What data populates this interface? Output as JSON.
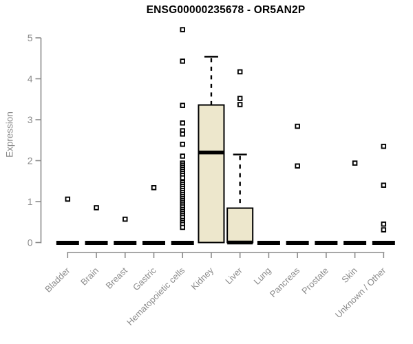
{
  "chart_data": {
    "type": "box",
    "title": "ENSG00000235678 - OR5AN2P",
    "ylabel": "Expression",
    "xlabel": "",
    "ylim": [
      0,
      5
    ],
    "yticks": [
      0,
      1,
      2,
      3,
      4,
      5
    ],
    "grid": false,
    "legend": "none",
    "categories": [
      "Bladder",
      "Brain",
      "Breast",
      "Gastric",
      "Hematopoietic cells",
      "Kidney",
      "Liver",
      "Lung",
      "Pancreas",
      "Prostate",
      "Skin",
      "Unknown / Other"
    ],
    "boxes": [
      {
        "category": "Bladder",
        "q1": 0,
        "median": 0,
        "q3": 0,
        "whisker_low": 0,
        "whisker_high": 0,
        "outliers": [
          1.06
        ]
      },
      {
        "category": "Brain",
        "q1": 0,
        "median": 0,
        "q3": 0,
        "whisker_low": 0,
        "whisker_high": 0,
        "outliers": [
          0.85
        ]
      },
      {
        "category": "Breast",
        "q1": 0,
        "median": 0,
        "q3": 0,
        "whisker_low": 0,
        "whisker_high": 0,
        "outliers": [
          0.57
        ]
      },
      {
        "category": "Gastric",
        "q1": 0,
        "median": 0,
        "q3": 0,
        "whisker_low": 0,
        "whisker_high": 0,
        "outliers": [
          1.34
        ]
      },
      {
        "category": "Hematopoietic cells",
        "q1": 0,
        "median": 0,
        "q3": 0,
        "whisker_low": 0,
        "whisker_high": 0,
        "outliers": [
          5.2,
          4.43,
          3.35,
          2.92,
          2.73,
          2.65,
          2.4,
          2.11,
          1.94,
          1.89,
          1.84,
          1.79,
          1.74,
          1.69,
          1.64,
          1.58,
          1.47,
          1.42,
          1.37,
          1.32,
          1.27,
          1.22,
          1.17,
          1.12,
          1.07,
          1.02,
          0.97,
          0.92,
          0.87,
          0.81,
          0.76,
          0.71,
          0.66,
          0.61,
          0.54,
          0.49,
          0.44,
          0.37
        ]
      },
      {
        "category": "Kidney",
        "q1": 0,
        "median": 2.2,
        "q3": 3.36,
        "whisker_low": 0,
        "whisker_high": 4.54,
        "outliers": []
      },
      {
        "category": "Liver",
        "q1": 0,
        "median": 0,
        "q3": 0.84,
        "whisker_low": 0,
        "whisker_high": 2.15,
        "outliers": [
          4.17,
          3.52,
          3.37
        ]
      },
      {
        "category": "Lung",
        "q1": 0,
        "median": 0,
        "q3": 0,
        "whisker_low": 0,
        "whisker_high": 0,
        "outliers": []
      },
      {
        "category": "Pancreas",
        "q1": 0,
        "median": 0,
        "q3": 0,
        "whisker_low": 0,
        "whisker_high": 0,
        "outliers": [
          2.84,
          1.87
        ]
      },
      {
        "category": "Prostate",
        "q1": 0,
        "median": 0,
        "q3": 0,
        "whisker_low": 0,
        "whisker_high": 0,
        "outliers": []
      },
      {
        "category": "Skin",
        "q1": 0,
        "median": 0,
        "q3": 0,
        "whisker_low": 0,
        "whisker_high": 0,
        "outliers": [
          1.94
        ]
      },
      {
        "category": "Unknown / Other",
        "q1": 0,
        "median": 0,
        "q3": 0,
        "whisker_low": 0,
        "whisker_high": 0,
        "outliers": [
          2.35,
          1.4,
          0.45,
          0.31
        ]
      }
    ],
    "colors": {
      "box_fill": "#EDE7CC",
      "box_stroke": "#000000",
      "median": "#000000",
      "whisker": "#000000",
      "outlier_stroke": "#000000",
      "outlier_fill": "#FFFFFF",
      "axis": "#8A8A8A",
      "tick_label": "#8B8B8B",
      "title": "#000000",
      "background": "#FFFFFF"
    }
  }
}
